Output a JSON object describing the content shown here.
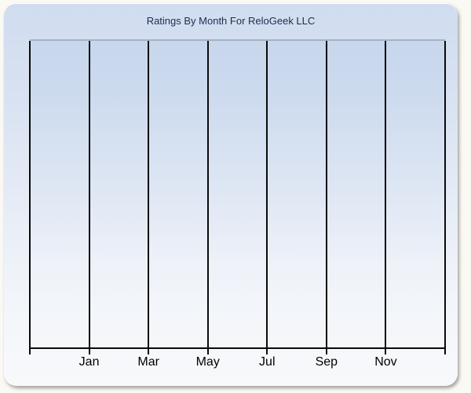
{
  "chart_data": {
    "type": "line",
    "title": "Ratings By Month For ReloGeek LLC",
    "categories": [
      "Jan",
      "Mar",
      "May",
      "Jul",
      "Sep",
      "Nov"
    ],
    "series": [],
    "xlabel": "",
    "ylabel": "",
    "legend": "none",
    "grid": "vertical-only",
    "x_axis": {
      "gridline_count": 8,
      "intervals": 7,
      "labels_under_interior_gridlines": true,
      "months_per_gridline": 2
    }
  },
  "colors": {
    "page_background": "#fbf9f4",
    "card_gradient_top": "#d0ddef",
    "card_gradient_bottom": "#f8f9fb",
    "plot_top_border": "#a7b1c3",
    "gridline": "#0a0a0a",
    "axis_line": "#0a0a0a",
    "title_text": "#1e2b50",
    "label_text": "#000000"
  }
}
